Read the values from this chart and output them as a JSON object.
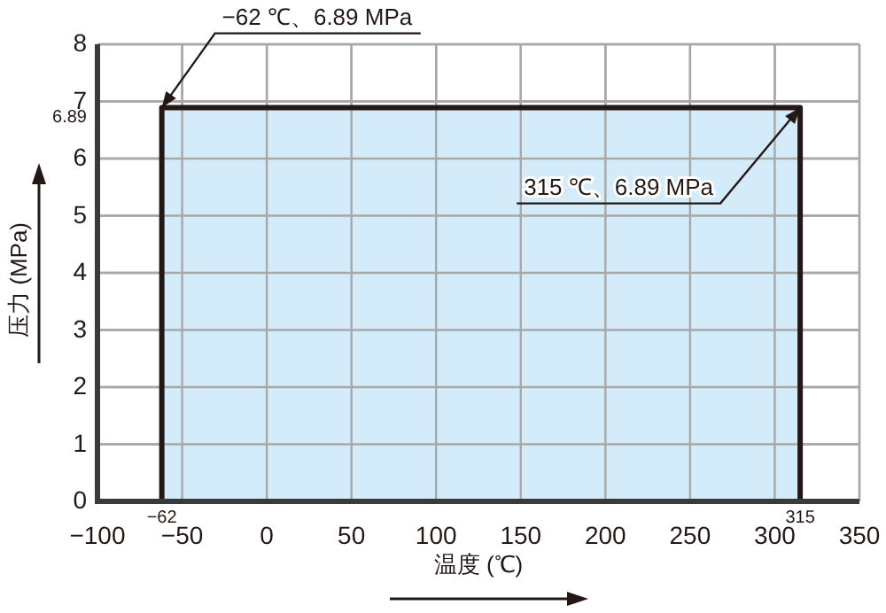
{
  "chart_data": {
    "type": "area",
    "xlabel": "温度 (℃)",
    "ylabel": "压力 (MPa)",
    "x": [
      -62,
      315
    ],
    "series": [
      {
        "color": "#d4ebf9",
        "values": [
          6.89,
          6.89
        ]
      }
    ],
    "xlim": [
      -100,
      350
    ],
    "xticks": [
      {
        "value": -100,
        "label": "−100"
      },
      {
        "value": -50,
        "label": "−50"
      },
      0,
      50,
      100,
      150,
      200,
      250,
      300,
      350
    ],
    "ylim": [
      0,
      8
    ],
    "yticks": [
      0,
      1,
      2,
      3,
      4,
      5,
      6,
      {
        "value": 6.89,
        "label": "6.89"
      },
      7,
      8
    ],
    "grid": true,
    "annotations": [
      {
        "text": "−62 ℃、6.89 MPa",
        "x": -62,
        "y": 6.89
      },
      {
        "text": "315 ℃、6.89 MPa",
        "x": 315,
        "y": 6.89
      },
      "−62",
      "315"
    ]
  }
}
